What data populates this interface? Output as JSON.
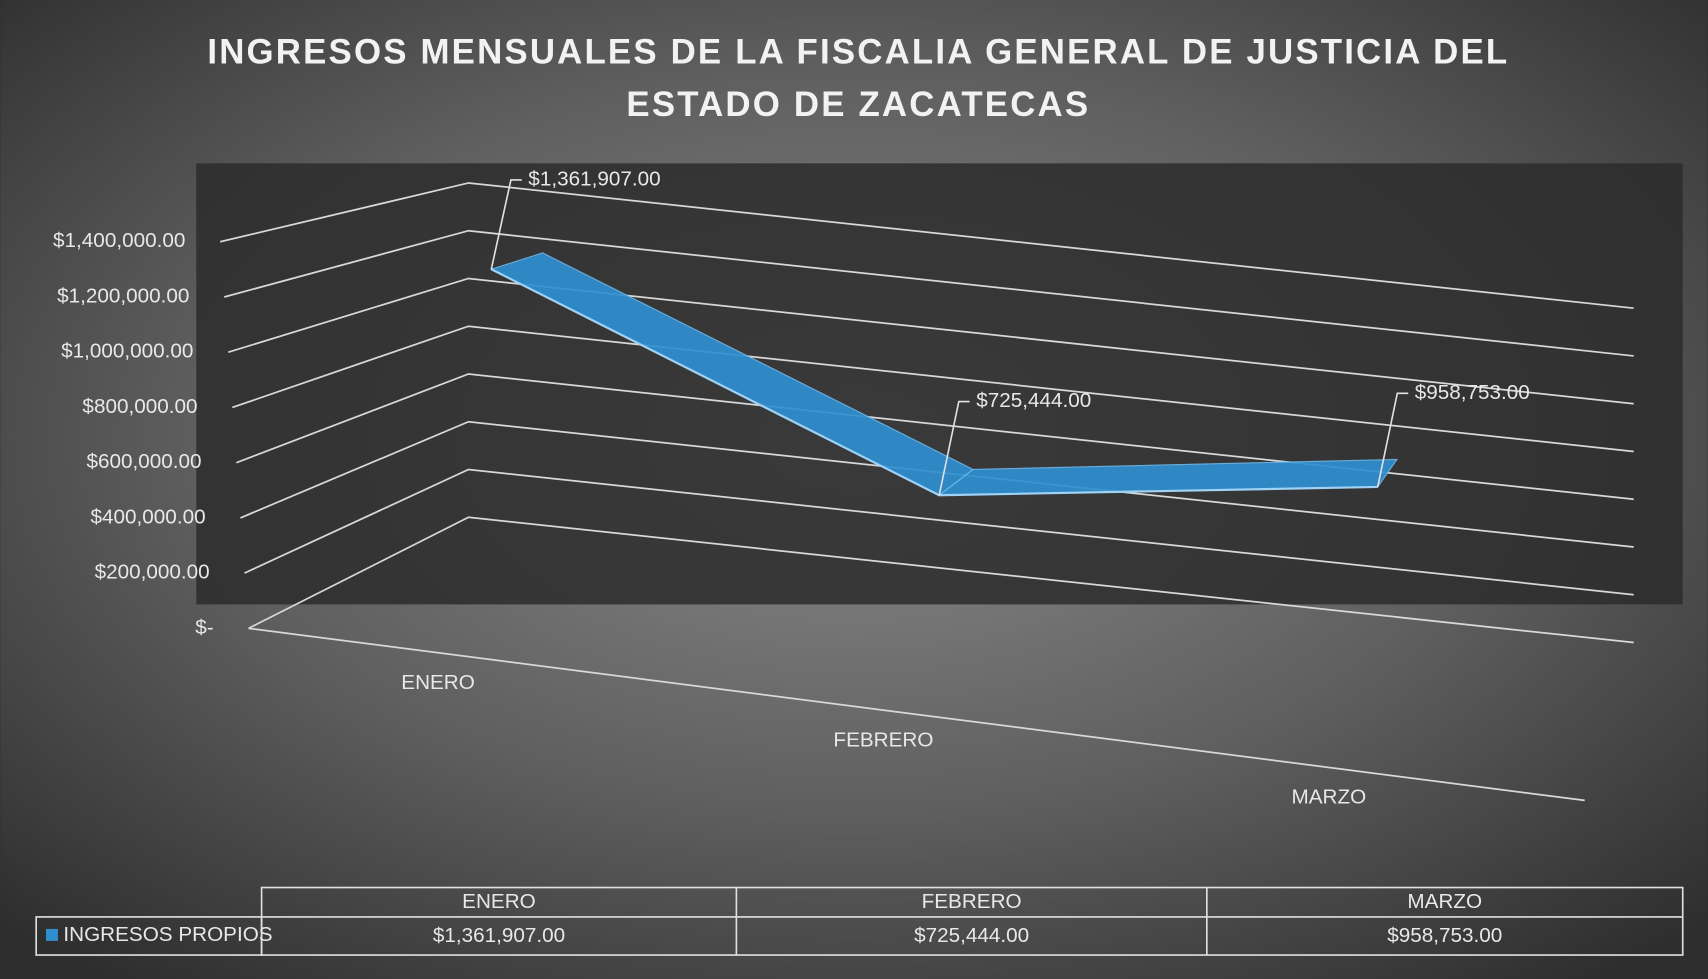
{
  "chart_data": {
    "type": "line3d",
    "title": [
      "INGRESOS MENSUALES DE LA FISCALIA GENERAL DE JUSTICIA DEL",
      "ESTADO DE ZACATECAS"
    ],
    "categories": [
      "ENERO",
      "FEBRERO",
      "MARZO"
    ],
    "series": [
      {
        "name": "INGRESOS PROPIOS",
        "color": "#2f8fd0",
        "values": [
          1361907,
          725444,
          958753
        ],
        "value_labels": [
          "$1,361,907.00",
          "$725,444.00",
          "$958,753.00"
        ]
      }
    ],
    "ylim": [
      0,
      1400000
    ],
    "yticks": [
      {
        "value": 0,
        "label": "$-"
      },
      {
        "value": 200000,
        "label": "$200,000.00"
      },
      {
        "value": 400000,
        "label": "$400,000.00"
      },
      {
        "value": 600000,
        "label": "$600,000.00"
      },
      {
        "value": 800000,
        "label": "$800,000.00"
      },
      {
        "value": 1000000,
        "label": "$1,000,000.00"
      },
      {
        "value": 1200000,
        "label": "$1,200,000.00"
      },
      {
        "value": 1400000,
        "label": "$1,400,000.00"
      }
    ],
    "grid": true,
    "data_table": true
  }
}
